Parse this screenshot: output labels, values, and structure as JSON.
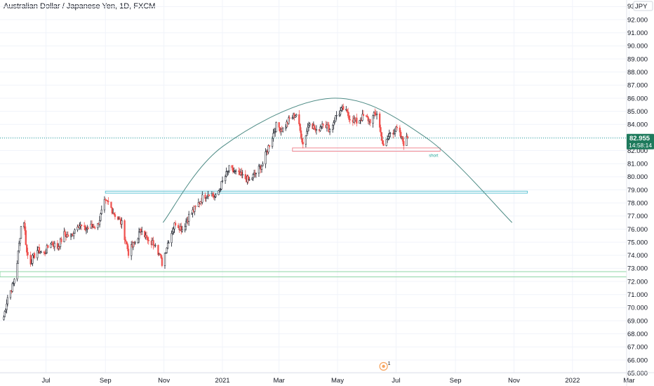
{
  "header": {
    "symbol_title": "Australian Dollar / Japanese Yen, 1D, FXCM"
  },
  "price_axis": {
    "currency": "JPY",
    "last_price": "82.955",
    "countdown": "14:58:14"
  },
  "drawings": {
    "short_label": "short"
  },
  "events_badge": {
    "count": "1"
  },
  "colors": {
    "up": "#26a69a",
    "down": "#ef5350",
    "candle_up_body": "#ffffff",
    "candle_outline": "#131722",
    "last_price_bg": "#1e7a5c",
    "arc": "#4f8c86",
    "zone_blue": "#5ec3d3",
    "zone_green": "#8fd6a6",
    "zone_red": "#f08a94"
  },
  "chart_data": {
    "type": "candlestick",
    "title": "Australian Dollar / Japanese Yen, 1D, FXCM",
    "y_ticks": [
      "65.000",
      "66.000",
      "67.000",
      "68.000",
      "69.000",
      "70.000",
      "71.000",
      "72.000",
      "73.000",
      "74.000",
      "75.000",
      "76.000",
      "77.000",
      "78.000",
      "79.000",
      "80.000",
      "81.000",
      "82.000",
      "83.000",
      "84.000",
      "85.000",
      "86.000",
      "87.000",
      "88.000",
      "89.000",
      "90.000",
      "91.000",
      "92.000",
      "93.000"
    ],
    "x_ticks": [
      "Jul",
      "Sep",
      "Nov",
      "2021",
      "Mar",
      "May",
      "Jul",
      "Sep",
      "Nov",
      "2022",
      "Mar"
    ],
    "ylim": [
      65,
      93
    ],
    "last_price": 82.955,
    "close_path": [
      {
        "date": "2020-05-18",
        "value": 69.3
      },
      {
        "date": "2020-05-22",
        "value": 70.8
      },
      {
        "date": "2020-05-28",
        "value": 71.8
      },
      {
        "date": "2020-06-01",
        "value": 73.5
      },
      {
        "date": "2020-06-05",
        "value": 76.2
      },
      {
        "date": "2020-06-08",
        "value": 76.6
      },
      {
        "date": "2020-06-11",
        "value": 74.2
      },
      {
        "date": "2020-06-15",
        "value": 73.5
      },
      {
        "date": "2020-06-22",
        "value": 74.4
      },
      {
        "date": "2020-06-29",
        "value": 74.1
      },
      {
        "date": "2020-07-06",
        "value": 75.0
      },
      {
        "date": "2020-07-13",
        "value": 74.6
      },
      {
        "date": "2020-07-20",
        "value": 75.6
      },
      {
        "date": "2020-07-27",
        "value": 75.4
      },
      {
        "date": "2020-08-03",
        "value": 76.4
      },
      {
        "date": "2020-08-10",
        "value": 76.0
      },
      {
        "date": "2020-08-17",
        "value": 76.2
      },
      {
        "date": "2020-08-24",
        "value": 76.3
      },
      {
        "date": "2020-08-31",
        "value": 78.0
      },
      {
        "date": "2020-09-04",
        "value": 78.0
      },
      {
        "date": "2020-09-10",
        "value": 77.2
      },
      {
        "date": "2020-09-18",
        "value": 76.4
      },
      {
        "date": "2020-09-25",
        "value": 74.2
      },
      {
        "date": "2020-10-02",
        "value": 75.0
      },
      {
        "date": "2020-10-09",
        "value": 76.1
      },
      {
        "date": "2020-10-16",
        "value": 74.9
      },
      {
        "date": "2020-10-23",
        "value": 75.0
      },
      {
        "date": "2020-10-30",
        "value": 73.4
      },
      {
        "date": "2020-11-06",
        "value": 75.2
      },
      {
        "date": "2020-11-13",
        "value": 76.5
      },
      {
        "date": "2020-11-20",
        "value": 76.0
      },
      {
        "date": "2020-11-27",
        "value": 77.0
      },
      {
        "date": "2020-12-04",
        "value": 77.6
      },
      {
        "date": "2020-12-11",
        "value": 78.4
      },
      {
        "date": "2020-12-18",
        "value": 78.8
      },
      {
        "date": "2020-12-25",
        "value": 78.4
      },
      {
        "date": "2021-01-01",
        "value": 79.6
      },
      {
        "date": "2021-01-08",
        "value": 80.6
      },
      {
        "date": "2021-01-15",
        "value": 80.3
      },
      {
        "date": "2021-01-22",
        "value": 80.0
      },
      {
        "date": "2021-01-29",
        "value": 79.7
      },
      {
        "date": "2021-02-05",
        "value": 80.3
      },
      {
        "date": "2021-02-12",
        "value": 81.0
      },
      {
        "date": "2021-02-19",
        "value": 82.5
      },
      {
        "date": "2021-02-26",
        "value": 83.9
      },
      {
        "date": "2021-03-05",
        "value": 83.6
      },
      {
        "date": "2021-03-12",
        "value": 84.4
      },
      {
        "date": "2021-03-19",
        "value": 84.8
      },
      {
        "date": "2021-03-26",
        "value": 82.5
      },
      {
        "date": "2021-04-02",
        "value": 84.3
      },
      {
        "date": "2021-04-09",
        "value": 83.4
      },
      {
        "date": "2021-04-16",
        "value": 84.2
      },
      {
        "date": "2021-04-23",
        "value": 83.6
      },
      {
        "date": "2021-04-30",
        "value": 84.7
      },
      {
        "date": "2021-05-07",
        "value": 85.2
      },
      {
        "date": "2021-05-14",
        "value": 84.5
      },
      {
        "date": "2021-05-21",
        "value": 84.2
      },
      {
        "date": "2021-05-28",
        "value": 84.6
      },
      {
        "date": "2021-06-04",
        "value": 84.3
      },
      {
        "date": "2021-06-11",
        "value": 84.9
      },
      {
        "date": "2021-06-18",
        "value": 82.2
      },
      {
        "date": "2021-06-25",
        "value": 83.4
      },
      {
        "date": "2021-07-02",
        "value": 83.6
      },
      {
        "date": "2021-07-09",
        "value": 82.6
      },
      {
        "date": "2021-07-13",
        "value": 82.955
      }
    ],
    "levels": [
      {
        "type": "zone",
        "color": "blue",
        "from_date": "2020-09-01",
        "to_date": "2021-11-15",
        "top": 78.9,
        "bottom": 78.75
      },
      {
        "type": "zone",
        "color": "green",
        "from_date": "2020-05-15",
        "to_date": "2022-03-31",
        "top": 72.7,
        "bottom": 72.35
      },
      {
        "type": "zone",
        "color": "red",
        "label": "short",
        "from_date": "2021-03-15",
        "to_date": "2021-08-16",
        "top": 82.2,
        "bottom": 81.95
      }
    ],
    "arc": [
      {
        "date": "2020-10-31",
        "value": 76.5
      },
      {
        "date": "2021-01-01",
        "value": 82.3
      },
      {
        "date": "2021-04-25",
        "value": 86.0
      },
      {
        "date": "2021-08-01",
        "value": 83.0
      },
      {
        "date": "2021-10-30",
        "value": 76.5
      }
    ]
  }
}
